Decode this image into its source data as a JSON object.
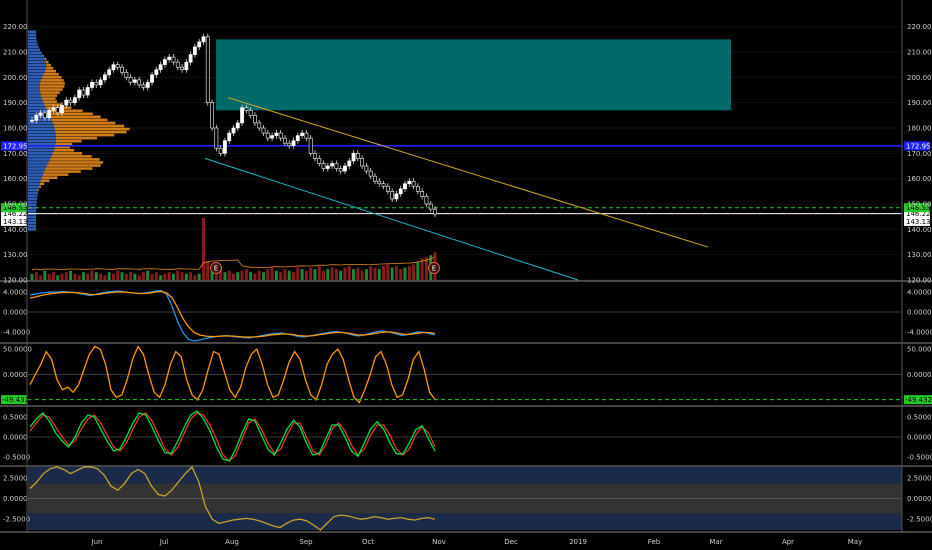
{
  "chart_data": [
    {
      "type": "candlestick",
      "panel": "price",
      "x_axis": {
        "labels": [
          "Jun",
          "Jul",
          "Aug",
          "Sep",
          "Oct",
          "Nov",
          "Dec",
          "2019",
          "Feb",
          "Mar",
          "Apr",
          "May"
        ]
      },
      "y_axis": {
        "range": [
          120,
          225
        ],
        "ticks": [
          120,
          130,
          140,
          150,
          160,
          170,
          180,
          190,
          200,
          210,
          220
        ],
        "tick_labels": [
          "120.00",
          "130.00",
          "140.00",
          "150.00",
          "160.00",
          "170.00",
          "180.00",
          "190.00",
          "200.00",
          "210.00",
          "220.00"
        ]
      },
      "price_levels": [
        {
          "label": "172.95",
          "value": 172.95,
          "color": "#1e22ff",
          "style": "solid"
        },
        {
          "label": "146.22",
          "value": 146.22,
          "color": "#ffffff",
          "style": "solid"
        },
        {
          "label": "143.13",
          "value": 143.13,
          "color": "#ffffff",
          "style": "none"
        },
        {
          "label": "148.53",
          "value": 148.53,
          "color": "#22cc22",
          "style": "dashed"
        }
      ],
      "earnings_markers": [
        "E",
        "E"
      ],
      "closes": [
        183,
        185,
        186,
        184,
        187,
        188,
        186,
        189,
        191,
        190,
        192,
        195,
        193,
        196,
        198,
        197,
        199,
        201,
        203,
        205,
        204,
        202,
        200,
        198,
        199,
        197,
        196,
        198,
        201,
        203,
        205,
        207,
        208,
        206,
        204,
        203,
        206,
        209,
        212,
        214,
        216,
        190,
        180,
        172,
        170,
        175,
        178,
        180,
        182,
        188,
        187,
        185,
        182,
        180,
        178,
        176,
        177,
        178,
        176,
        174,
        173,
        175,
        177,
        178,
        176,
        170,
        168,
        166,
        164,
        165,
        166,
        164,
        163,
        165,
        167,
        170,
        168,
        165,
        163,
        161,
        159,
        158,
        157,
        155,
        152,
        154,
        156,
        158,
        159,
        157,
        155,
        153,
        150,
        148,
        146
      ],
      "ranges": {
        "supply_zone": {
          "from": 187,
          "to": 215
        },
        "trend_upper": {
          "from": 192,
          "to": 133
        },
        "trend_lower": {
          "from": 168,
          "to": 120
        }
      },
      "colors": {
        "up": "#ffffff",
        "down": "#ffffff",
        "zone": "#006f6f",
        "trend_upper": "#d4a92c",
        "trend_lower": "#1fb5c9",
        "profile_blue": "#2d5fb7",
        "profile_orange": "#e8891c"
      }
    },
    {
      "type": "line",
      "panel": "indicator-1",
      "y_axis": {
        "ticks": [
          4,
          0,
          -4
        ],
        "tick_labels": [
          "4.0000",
          "0.0000",
          "-4.0000"
        ],
        "range": [
          -6,
          6
        ]
      },
      "series": [
        {
          "color": "#2196f3",
          "values": [
            3.4,
            3.6,
            3.8,
            3.9,
            4.0,
            4.0,
            4.1,
            4.0,
            3.9,
            3.7,
            3.5,
            3.3,
            3.5,
            3.8,
            4.0,
            4.1,
            4.2,
            4.1,
            3.9,
            3.8,
            3.7,
            3.8,
            4.0,
            4.2,
            4.3,
            3.5,
            1.0,
            -2.0,
            -4.2,
            -5.5,
            -5.8,
            -5.6,
            -5.3,
            -5.1,
            -4.9,
            -4.8,
            -4.7,
            -4.9,
            -5.0,
            -5.1,
            -5.2,
            -5.0,
            -4.8,
            -4.6,
            -4.4,
            -4.3,
            -4.2,
            -4.4,
            -4.6,
            -4.9,
            -5.0,
            -4.8,
            -4.6,
            -4.4,
            -4.2,
            -4.0,
            -3.9,
            -4.1,
            -4.3,
            -4.6,
            -4.8,
            -4.6,
            -4.3,
            -4.0,
            -3.8,
            -3.9,
            -4.1,
            -4.4,
            -4.7,
            -4.5,
            -4.2,
            -4.0,
            -4.1,
            -4.3,
            -4.6
          ]
        },
        {
          "color": "#ff9800",
          "values": [
            2.8,
            3.0,
            3.3,
            3.5,
            3.7,
            3.8,
            3.9,
            3.9,
            3.9,
            3.8,
            3.7,
            3.5,
            3.5,
            3.6,
            3.8,
            3.9,
            4.0,
            4.0,
            3.9,
            3.8,
            3.7,
            3.7,
            3.8,
            4.0,
            4.1,
            3.8,
            2.8,
            0.8,
            -1.4,
            -3.0,
            -4.1,
            -4.6,
            -4.8,
            -4.9,
            -4.9,
            -4.8,
            -4.8,
            -4.8,
            -4.9,
            -5.0,
            -5.0,
            -5.0,
            -4.9,
            -4.8,
            -4.6,
            -4.5,
            -4.4,
            -4.4,
            -4.5,
            -4.7,
            -4.8,
            -4.8,
            -4.7,
            -4.5,
            -4.4,
            -4.2,
            -4.1,
            -4.1,
            -4.2,
            -4.4,
            -4.6,
            -4.6,
            -4.5,
            -4.3,
            -4.1,
            -4.0,
            -4.0,
            -4.2,
            -4.4,
            -4.5,
            -4.4,
            -4.2,
            -4.1,
            -4.1,
            -4.3
          ]
        }
      ]
    },
    {
      "type": "line",
      "panel": "indicator-2",
      "y_axis": {
        "ticks": [
          50,
          0
        ],
        "tick_labels": [
          "50.0000",
          "0.0000"
        ],
        "range": [
          -60,
          60
        ]
      },
      "level_label": "-49.4322",
      "level_value": -49.4322,
      "series": [
        {
          "color": "#ff9800",
          "values": [
            -20,
            0,
            20,
            45,
            30,
            -10,
            -30,
            -25,
            -35,
            -20,
            10,
            40,
            55,
            50,
            20,
            -30,
            -45,
            -40,
            -10,
            30,
            55,
            40,
            0,
            -35,
            -45,
            -20,
            20,
            45,
            35,
            -10,
            -40,
            -50,
            -30,
            10,
            45,
            40,
            5,
            -30,
            -45,
            -25,
            15,
            40,
            50,
            20,
            -20,
            -45,
            -40,
            -10,
            25,
            45,
            30,
            -10,
            -40,
            -50,
            -20,
            20,
            40,
            50,
            30,
            -10,
            -45,
            -55,
            -30,
            0,
            35,
            45,
            20,
            -20,
            -45,
            -40,
            -10,
            30,
            45,
            10,
            -35,
            -49
          ]
        }
      ]
    },
    {
      "type": "line",
      "panel": "indicator-3",
      "y_axis": {
        "ticks": [
          0.5,
          0,
          -0.5
        ],
        "tick_labels": [
          "0.5000",
          "0.0000",
          "-0.5000"
        ],
        "range": [
          -0.7,
          0.75
        ]
      },
      "series": [
        {
          "color": "#e53935",
          "values": [
            0.15,
            0.35,
            0.55,
            0.5,
            0.25,
            0.0,
            -0.2,
            -0.1,
            0.2,
            0.45,
            0.55,
            0.35,
            0.05,
            -0.25,
            -0.35,
            -0.15,
            0.2,
            0.5,
            0.6,
            0.4,
            0.05,
            -0.3,
            -0.45,
            -0.25,
            0.1,
            0.45,
            0.6,
            0.55,
            0.3,
            -0.05,
            -0.45,
            -0.6,
            -0.45,
            -0.05,
            0.35,
            0.45,
            0.2,
            -0.15,
            -0.4,
            -0.3,
            0.05,
            0.35,
            0.35,
            0.0,
            -0.35,
            -0.45,
            -0.2,
            0.2,
            0.35,
            0.15,
            -0.2,
            -0.45,
            -0.3,
            0.05,
            0.3,
            0.3,
            0.05,
            -0.3,
            -0.45,
            -0.3,
            0.05,
            0.25,
            0.1,
            -0.25
          ]
        },
        {
          "color": "#00e640",
          "values": [
            0.25,
            0.45,
            0.6,
            0.4,
            0.1,
            -0.1,
            -0.25,
            0.0,
            0.35,
            0.55,
            0.5,
            0.2,
            -0.1,
            -0.35,
            -0.3,
            0.0,
            0.35,
            0.6,
            0.55,
            0.25,
            -0.1,
            -0.4,
            -0.4,
            -0.1,
            0.25,
            0.55,
            0.65,
            0.45,
            0.15,
            -0.25,
            -0.55,
            -0.6,
            -0.3,
            0.1,
            0.45,
            0.4,
            0.05,
            -0.3,
            -0.45,
            -0.15,
            0.2,
            0.42,
            0.25,
            -0.15,
            -0.45,
            -0.4,
            -0.05,
            0.3,
            0.3,
            0.0,
            -0.35,
            -0.48,
            -0.15,
            0.2,
            0.38,
            0.2,
            -0.15,
            -0.42,
            -0.42,
            -0.15,
            0.18,
            0.28,
            -0.05,
            -0.35
          ]
        }
      ]
    },
    {
      "type": "line",
      "panel": "indicator-4",
      "y_axis": {
        "ticks": [
          2.5,
          0,
          -2.5
        ],
        "tick_labels": [
          "2.5000",
          "0.0000",
          "-2.5000"
        ],
        "range": [
          -3.8,
          3.8
        ]
      },
      "series": [
        {
          "color": "#c9a227",
          "values": [
            1.2,
            2.0,
            3.0,
            3.6,
            3.8,
            3.5,
            3.0,
            3.4,
            3.8,
            3.9,
            3.6,
            2.8,
            1.5,
            1.0,
            1.8,
            3.0,
            3.5,
            3.0,
            1.5,
            0.5,
            0.3,
            1.0,
            2.0,
            3.0,
            3.8,
            2.0,
            -1.0,
            -2.5,
            -3.0,
            -2.8,
            -2.6,
            -2.5,
            -2.4,
            -2.5,
            -2.7,
            -3.0,
            -3.3,
            -3.5,
            -3.0,
            -2.6,
            -2.5,
            -2.7,
            -3.2,
            -4.5,
            -3.0,
            -2.2,
            -2.0,
            -2.1,
            -2.3,
            -2.5,
            -2.4,
            -2.2,
            -2.3,
            -2.5,
            -2.4,
            -2.3,
            -2.5,
            -2.6,
            -2.4,
            -2.3,
            -2.5
          ]
        }
      ]
    },
    {
      "type": "bar",
      "panel": "volume",
      "series": [
        {
          "name": "",
          "colors": [
            "#1b8a3a",
            "#8a1b1b"
          ],
          "values": [
            4,
            5,
            3,
            6,
            4,
            5,
            3,
            4,
            5,
            6,
            4,
            3,
            5,
            4,
            6,
            5,
            4,
            3,
            5,
            4,
            6,
            5,
            4,
            5,
            4,
            3,
            5,
            6,
            4,
            5,
            3,
            4,
            5,
            4,
            6,
            5,
            4,
            5,
            3,
            4,
            40,
            12,
            8,
            6,
            7,
            5,
            6,
            4,
            5,
            6,
            7,
            5,
            4,
            6,
            5,
            7,
            8,
            6,
            5,
            7,
            6,
            5,
            8,
            7,
            6,
            8,
            7,
            9,
            6,
            7,
            8,
            7,
            6,
            8,
            9,
            7,
            8,
            6,
            7,
            9,
            8,
            7,
            9,
            10,
            8,
            9,
            7,
            8,
            9,
            10,
            12,
            14,
            15,
            16,
            18
          ]
        }
      ]
    }
  ]
}
